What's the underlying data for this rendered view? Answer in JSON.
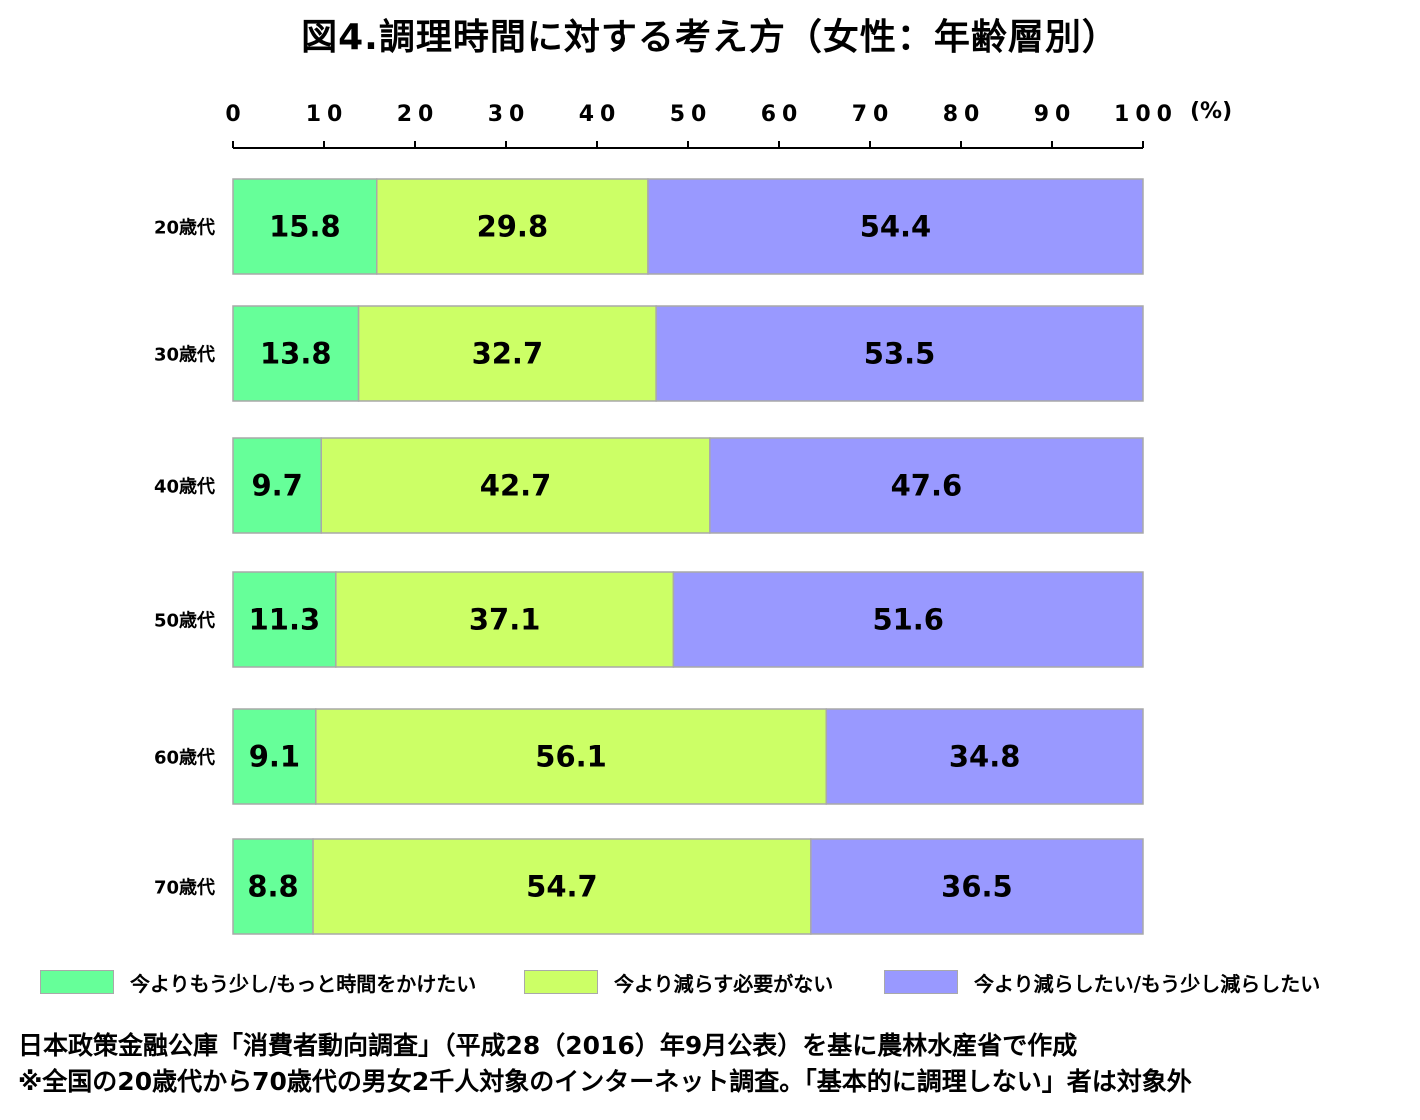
{
  "title": "図4.調理時間に対する考え方（女性：年齢層別）",
  "chart_data": {
    "type": "bar",
    "orientation": "horizontal",
    "stacked": true,
    "title": "図4.調理時間に対する考え方（女性：年齢層別）",
    "xlim": [
      0,
      100
    ],
    "ticks": [
      "0",
      "10",
      "20",
      "30",
      "40",
      "50",
      "60",
      "70",
      "80",
      "90",
      "100"
    ],
    "unit": "(%)",
    "categories": [
      "20歳代",
      "30歳代",
      "40歳代",
      "50歳代",
      "60歳代",
      "70歳代"
    ],
    "series": [
      {
        "name": "今よりもう少し/もっと時間をかけたい",
        "color": "#66ff99",
        "values": [
          15.8,
          13.8,
          9.7,
          11.3,
          9.1,
          8.8
        ],
        "labels": [
          "15.8",
          "13.8",
          "9.7",
          "11.3",
          "9.1",
          "8.8"
        ]
      },
      {
        "name": "今より減らす必要がない",
        "color": "#ccff66",
        "values": [
          29.8,
          32.7,
          42.7,
          37.1,
          56.1,
          54.7
        ],
        "labels": [
          "29.8",
          "32.7",
          "42.7",
          "37.1",
          "56.1",
          "54.7"
        ]
      },
      {
        "name": "今より減らしたい/もう少し減らしたい",
        "color": "#9999ff",
        "values": [
          54.4,
          53.5,
          47.6,
          51.6,
          34.8,
          36.5
        ],
        "labels": [
          "54.4",
          "53.5",
          "47.6",
          "51.6",
          "34.8",
          "36.5"
        ]
      }
    ],
    "legend_position": "bottom",
    "grid": false
  },
  "notes": [
    "日本政策金融公庫「消費者動向調査」（平成28（2016）年9月公表）を基に農林水産省で作成",
    "※全国の20歳代から70歳代の男女2千人対象のインターネット調査。「基本的に調理しない」者は対象外"
  ]
}
